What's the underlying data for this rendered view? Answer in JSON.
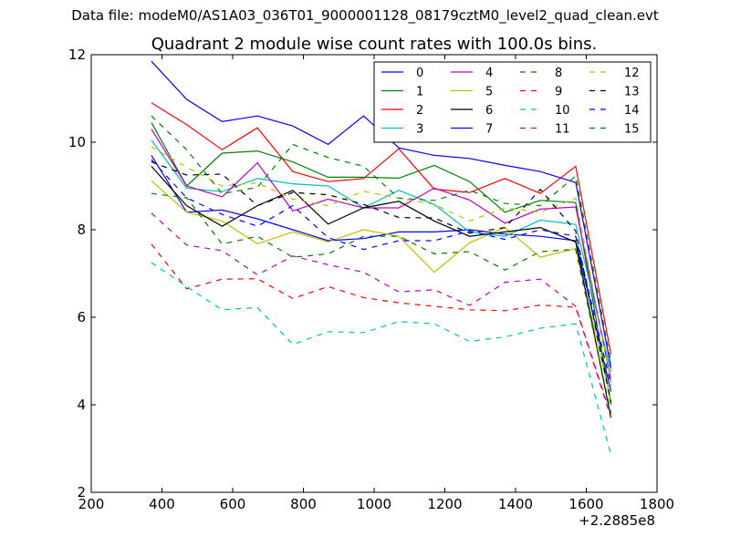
{
  "suptitle": "Data file: modeM0/AS1A03_036T01_9000001128_08179cztM0_level2_quad_clean.evt",
  "chart_data": {
    "type": "line",
    "title": "Quadrant 2 module wise count rates with 100.0s bins.",
    "xlabel": "",
    "ylabel": "",
    "x_offset_label": "+2.2885e8",
    "xlim": [
      200,
      1800
    ],
    "ylim": [
      2,
      12
    ],
    "xticks": [
      "200",
      "400",
      "600",
      "800",
      "1000",
      "1200",
      "1400",
      "1600",
      "1800"
    ],
    "yticks": [
      "2",
      "4",
      "6",
      "8",
      "10",
      "12"
    ],
    "grid": false,
    "legend_position": "top-right",
    "x": [
      370,
      470,
      570,
      670,
      770,
      870,
      970,
      1070,
      1170,
      1270,
      1370,
      1470,
      1570,
      1670
    ],
    "series": [
      {
        "name": "0",
        "color": "#0000ff",
        "dash": "solid",
        "values": [
          9.7,
          8.4,
          8.45,
          8.25,
          8.0,
          7.75,
          7.8,
          7.95,
          7.95,
          8.0,
          7.9,
          7.85,
          7.75,
          4.3
        ]
      },
      {
        "name": "1",
        "color": "#008000",
        "dash": "solid",
        "values": [
          10.45,
          9.0,
          9.75,
          9.8,
          9.55,
          9.2,
          9.2,
          9.18,
          9.47,
          9.1,
          8.4,
          8.67,
          8.62,
          4.0
        ]
      },
      {
        "name": "2",
        "color": "#ff0000",
        "dash": "solid",
        "values": [
          10.9,
          10.4,
          9.83,
          10.33,
          9.33,
          9.1,
          9.17,
          9.85,
          8.93,
          8.85,
          9.17,
          8.83,
          9.45,
          5.15
        ]
      },
      {
        "name": "3",
        "color": "#00bfbf",
        "dash": "solid",
        "values": [
          10.05,
          8.95,
          8.87,
          9.17,
          9.05,
          9.0,
          8.5,
          8.9,
          8.58,
          7.95,
          7.85,
          8.22,
          8.12,
          4.75
        ]
      },
      {
        "name": "4",
        "color": "#bf00bf",
        "dash": "solid",
        "values": [
          10.3,
          9.0,
          8.75,
          9.53,
          8.43,
          8.7,
          8.5,
          8.5,
          8.95,
          8.68,
          8.15,
          8.47,
          8.52,
          4.55
        ]
      },
      {
        "name": "5",
        "color": "#bfbf00",
        "dash": "solid",
        "values": [
          9.12,
          8.4,
          8.2,
          7.68,
          7.95,
          7.72,
          8.0,
          7.85,
          7.03,
          7.7,
          8.05,
          7.37,
          7.57,
          4.1
        ]
      },
      {
        "name": "6",
        "color": "#000000",
        "dash": "solid",
        "values": [
          9.45,
          8.55,
          8.08,
          8.55,
          8.9,
          8.13,
          8.5,
          8.65,
          8.2,
          7.85,
          7.95,
          8.05,
          7.72,
          3.7
        ]
      },
      {
        "name": "7",
        "color": "#0000ff",
        "dash": "solid",
        "values": [
          11.85,
          10.98,
          10.47,
          10.6,
          10.37,
          9.95,
          10.6,
          9.87,
          9.7,
          9.63,
          9.47,
          9.33,
          9.08,
          4.85
        ]
      },
      {
        "name": "8",
        "color": "#008000",
        "dash": "dashed",
        "values": [
          8.83,
          8.73,
          7.67,
          7.85,
          7.37,
          7.45,
          7.85,
          7.85,
          7.45,
          7.5,
          7.08,
          7.5,
          7.55,
          3.8
        ]
      },
      {
        "name": "9",
        "color": "#ff0000",
        "dash": "dashed",
        "values": [
          7.67,
          6.65,
          6.87,
          6.88,
          6.43,
          6.7,
          6.45,
          6.33,
          6.25,
          6.17,
          6.15,
          6.28,
          6.23,
          3.7
        ]
      },
      {
        "name": "10",
        "color": "#00bfbf",
        "dash": "dashed",
        "values": [
          7.25,
          6.7,
          6.17,
          6.22,
          5.38,
          5.67,
          5.65,
          5.9,
          5.85,
          5.45,
          5.55,
          5.75,
          5.85,
          2.85
        ]
      },
      {
        "name": "11",
        "color": "#bf00bf",
        "dash": "dashed",
        "values": [
          8.38,
          7.65,
          7.52,
          6.97,
          7.4,
          7.2,
          7.03,
          6.58,
          6.63,
          6.27,
          6.8,
          6.87,
          6.25,
          3.75
        ]
      },
      {
        "name": "12",
        "color": "#bfbf00",
        "dash": "dashed",
        "values": [
          9.9,
          9.43,
          9.0,
          9.07,
          8.7,
          8.55,
          8.88,
          8.72,
          8.58,
          8.2,
          8.5,
          8.4,
          8.72,
          4.5
        ]
      },
      {
        "name": "13",
        "color": "#000000",
        "dash": "dashed",
        "values": [
          9.55,
          9.25,
          9.27,
          8.55,
          8.85,
          8.8,
          8.58,
          8.28,
          8.27,
          7.92,
          8.05,
          8.92,
          7.97,
          4.05
        ]
      },
      {
        "name": "14",
        "color": "#0000ff",
        "dash": "dashed",
        "values": [
          9.6,
          8.73,
          8.35,
          8.08,
          8.55,
          7.82,
          7.55,
          7.75,
          7.75,
          7.97,
          7.78,
          8.0,
          7.85,
          4.45
        ]
      },
      {
        "name": "15",
        "color": "#008000",
        "dash": "dashed",
        "values": [
          10.6,
          9.83,
          8.82,
          8.97,
          9.95,
          9.65,
          9.45,
          8.72,
          8.67,
          8.9,
          8.6,
          8.55,
          9.23,
          4.95
        ]
      }
    ]
  }
}
